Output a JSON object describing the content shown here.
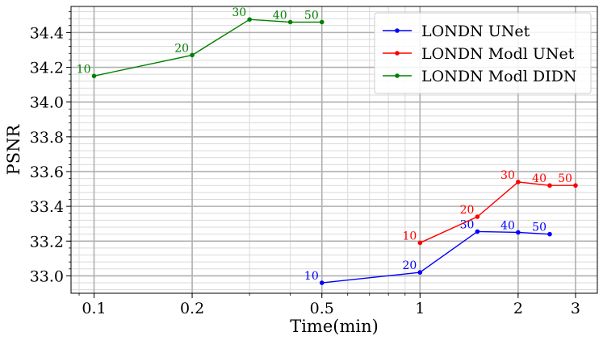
{
  "chart_data": {
    "type": "line",
    "xlabel": "Time(min)",
    "ylabel": "PSNR",
    "xscale": "log",
    "xlim": [
      0.085,
      3.5
    ],
    "ylim": [
      32.9,
      34.55
    ],
    "x_ticks": [
      0.1,
      0.2,
      0.5,
      1,
      2,
      3
    ],
    "x_tick_labels": [
      "0.1",
      "0.2",
      "0.5",
      "1",
      "2",
      "3"
    ],
    "y_ticks": [
      33.0,
      33.2,
      33.4,
      33.6,
      33.8,
      34.0,
      34.2,
      34.4
    ],
    "y_tick_labels": [
      "33.0",
      "33.2",
      "33.4",
      "33.6",
      "33.8",
      "34.0",
      "34.2",
      "34.4"
    ],
    "grid": true,
    "legend_position": "top-right",
    "series": [
      {
        "name": "LONDN UNet",
        "color": "#0000ff",
        "points": [
          {
            "x": 0.5,
            "y": 32.96,
            "label": "10"
          },
          {
            "x": 1.0,
            "y": 33.02,
            "label": "20"
          },
          {
            "x": 1.5,
            "y": 33.255,
            "label": "30"
          },
          {
            "x": 2.0,
            "y": 33.25,
            "label": "40"
          },
          {
            "x": 2.5,
            "y": 33.24,
            "label": "50"
          }
        ]
      },
      {
        "name": "LONDN Modl UNet",
        "color": "#ff0000",
        "points": [
          {
            "x": 1.0,
            "y": 33.19,
            "label": "10"
          },
          {
            "x": 1.5,
            "y": 33.34,
            "label": "20"
          },
          {
            "x": 2.0,
            "y": 33.54,
            "label": "30"
          },
          {
            "x": 2.5,
            "y": 33.52,
            "label": "40"
          },
          {
            "x": 3.0,
            "y": 33.52,
            "label": "50"
          }
        ]
      },
      {
        "name": "LONDN Modl DIDN",
        "color": "#008000",
        "points": [
          {
            "x": 0.1,
            "y": 34.15,
            "label": "10"
          },
          {
            "x": 0.2,
            "y": 34.27,
            "label": "20"
          },
          {
            "x": 0.3,
            "y": 34.475,
            "label": "30"
          },
          {
            "x": 0.4,
            "y": 34.46,
            "label": "40"
          },
          {
            "x": 0.5,
            "y": 34.46,
            "label": "50"
          }
        ]
      }
    ]
  }
}
